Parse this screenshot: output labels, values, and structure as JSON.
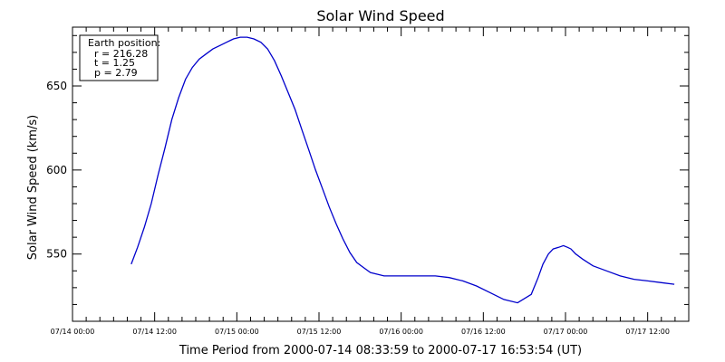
{
  "chart_data": {
    "type": "line",
    "title": "Solar Wind Speed",
    "xlabel": "Time Period from 2000-07-14 08:33:59 to 2000-07-17 16:53:54 (UT)",
    "ylabel": "Solar Wind Speed (km/s)",
    "x_unit": "hours since 07/14 00:00",
    "xlim": [
      0,
      90
    ],
    "ylim": [
      510,
      685
    ],
    "x_ticks": [
      {
        "value": 0,
        "label": "07/14 00:00"
      },
      {
        "value": 12,
        "label": "07/14 12:00"
      },
      {
        "value": 24,
        "label": "07/15 00:00"
      },
      {
        "value": 36,
        "label": "07/15 12:00"
      },
      {
        "value": 48,
        "label": "07/16 00:00"
      },
      {
        "value": 60,
        "label": "07/16 12:00"
      },
      {
        "value": 72,
        "label": "07/17 00:00"
      },
      {
        "value": 84,
        "label": "07/17 12:00"
      }
    ],
    "y_ticks": [
      {
        "value": 550,
        "label": "550"
      },
      {
        "value": 600,
        "label": "600"
      },
      {
        "value": 650,
        "label": "650"
      }
    ],
    "legend": {
      "title": "Earth position:",
      "lines": [
        "r = 216.28",
        "t = 1.25",
        "p = 2.79"
      ],
      "placement": "top-left"
    },
    "series": [
      {
        "color": "#0000cc",
        "x": [
          8.57,
          9.5,
          10.5,
          11.5,
          12.5,
          13.5,
          14.5,
          15.5,
          16.5,
          17.5,
          18.5,
          19.5,
          20.5,
          21.5,
          22.5,
          23.5,
          24.5,
          25.5,
          26.5,
          27.5,
          28.5,
          29.5,
          30.5,
          31.5,
          32.5,
          33.5,
          34.5,
          35.5,
          36.5,
          37.5,
          38.5,
          39.5,
          40.5,
          41.5,
          42.5,
          43.5,
          44.5,
          45.5,
          46.5,
          47.5,
          48.5,
          49.5,
          51,
          53,
          55,
          57,
          59,
          61,
          63,
          65,
          67,
          68,
          68.7,
          69.5,
          70.2,
          71,
          71.7,
          72.3,
          72.8,
          73.5,
          74.5,
          76,
          78,
          80,
          82,
          84,
          86,
          87.9
        ],
        "y": [
          544,
          554,
          566,
          580,
          597,
          613,
          630,
          643,
          654,
          661,
          666,
          669,
          672,
          674,
          676,
          678,
          679,
          679,
          678,
          676,
          672,
          665,
          656,
          646,
          636,
          624,
          612,
          600,
          589,
          578,
          568,
          559,
          551,
          545,
          542,
          539,
          538,
          537,
          537,
          537,
          537,
          537,
          537,
          537,
          536,
          534,
          531,
          527,
          523,
          521,
          526,
          536,
          544,
          550,
          553,
          554,
          555,
          554,
          553,
          550,
          547,
          543,
          540,
          537,
          535,
          534,
          533,
          532
        ]
      }
    ],
    "grid": false
  }
}
